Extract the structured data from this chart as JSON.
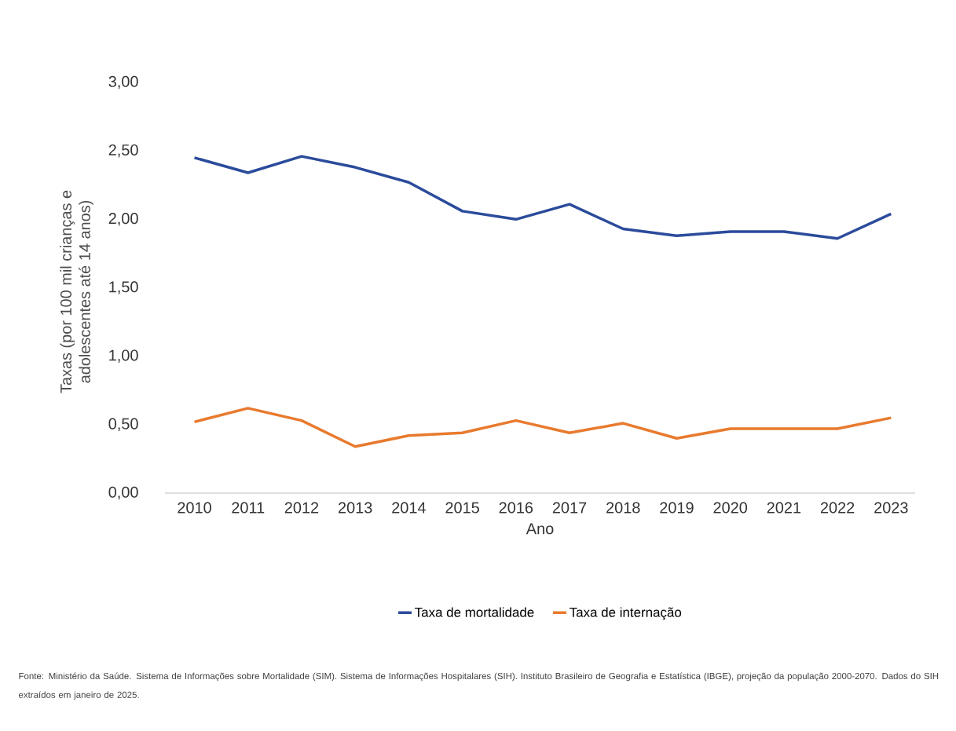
{
  "chart_data": {
    "type": "line",
    "ylabel": "Taxas (por 100 mil crianças e adolescentes até 14 anos)",
    "xlabel": "Ano",
    "categories": [
      "2010",
      "2011",
      "2012",
      "2013",
      "2014",
      "2015",
      "2016",
      "2017",
      "2018",
      "2019",
      "2020",
      "2021",
      "2022",
      "2023"
    ],
    "series": [
      {
        "name": "Taxa de mortalidade",
        "color": "#2b4b9b",
        "values": [
          2.45,
          2.34,
          2.46,
          2.38,
          2.27,
          2.06,
          2.0,
          2.11,
          1.93,
          1.88,
          1.91,
          1.91,
          1.86,
          2.04
        ]
      },
      {
        "name": "Taxa de internação",
        "color": "#e87a2e",
        "values": [
          0.52,
          0.62,
          0.53,
          0.34,
          0.42,
          0.44,
          0.53,
          0.44,
          0.51,
          0.4,
          0.47,
          0.47,
          0.47,
          0.55
        ]
      }
    ],
    "ylim": [
      0,
      3
    ],
    "yticks": [
      {
        "value": 0,
        "label": "0,00"
      },
      {
        "value": 0.5,
        "label": "0,50"
      },
      {
        "value": 1,
        "label": "1,00"
      },
      {
        "value": 1.5,
        "label": "1,50"
      },
      {
        "value": 2,
        "label": "2,00"
      },
      {
        "value": 2.5,
        "label": "2,50"
      },
      {
        "value": 3,
        "label": "3,00"
      }
    ],
    "legend": "bottom",
    "grid": false,
    "marker": "none",
    "line_style": "solid",
    "annotations": [
      "Fonte: Ministério da Saúde. Sistema de Informações sobre Mortalidade (SIM). Sistema de Informações Hospitalares (SIH). Instituto Brasileiro de Geografia e Estatística (IBGE), projeção da população 2000-2070. Dados do SIH extraídos em janeiro de 2025."
    ]
  }
}
